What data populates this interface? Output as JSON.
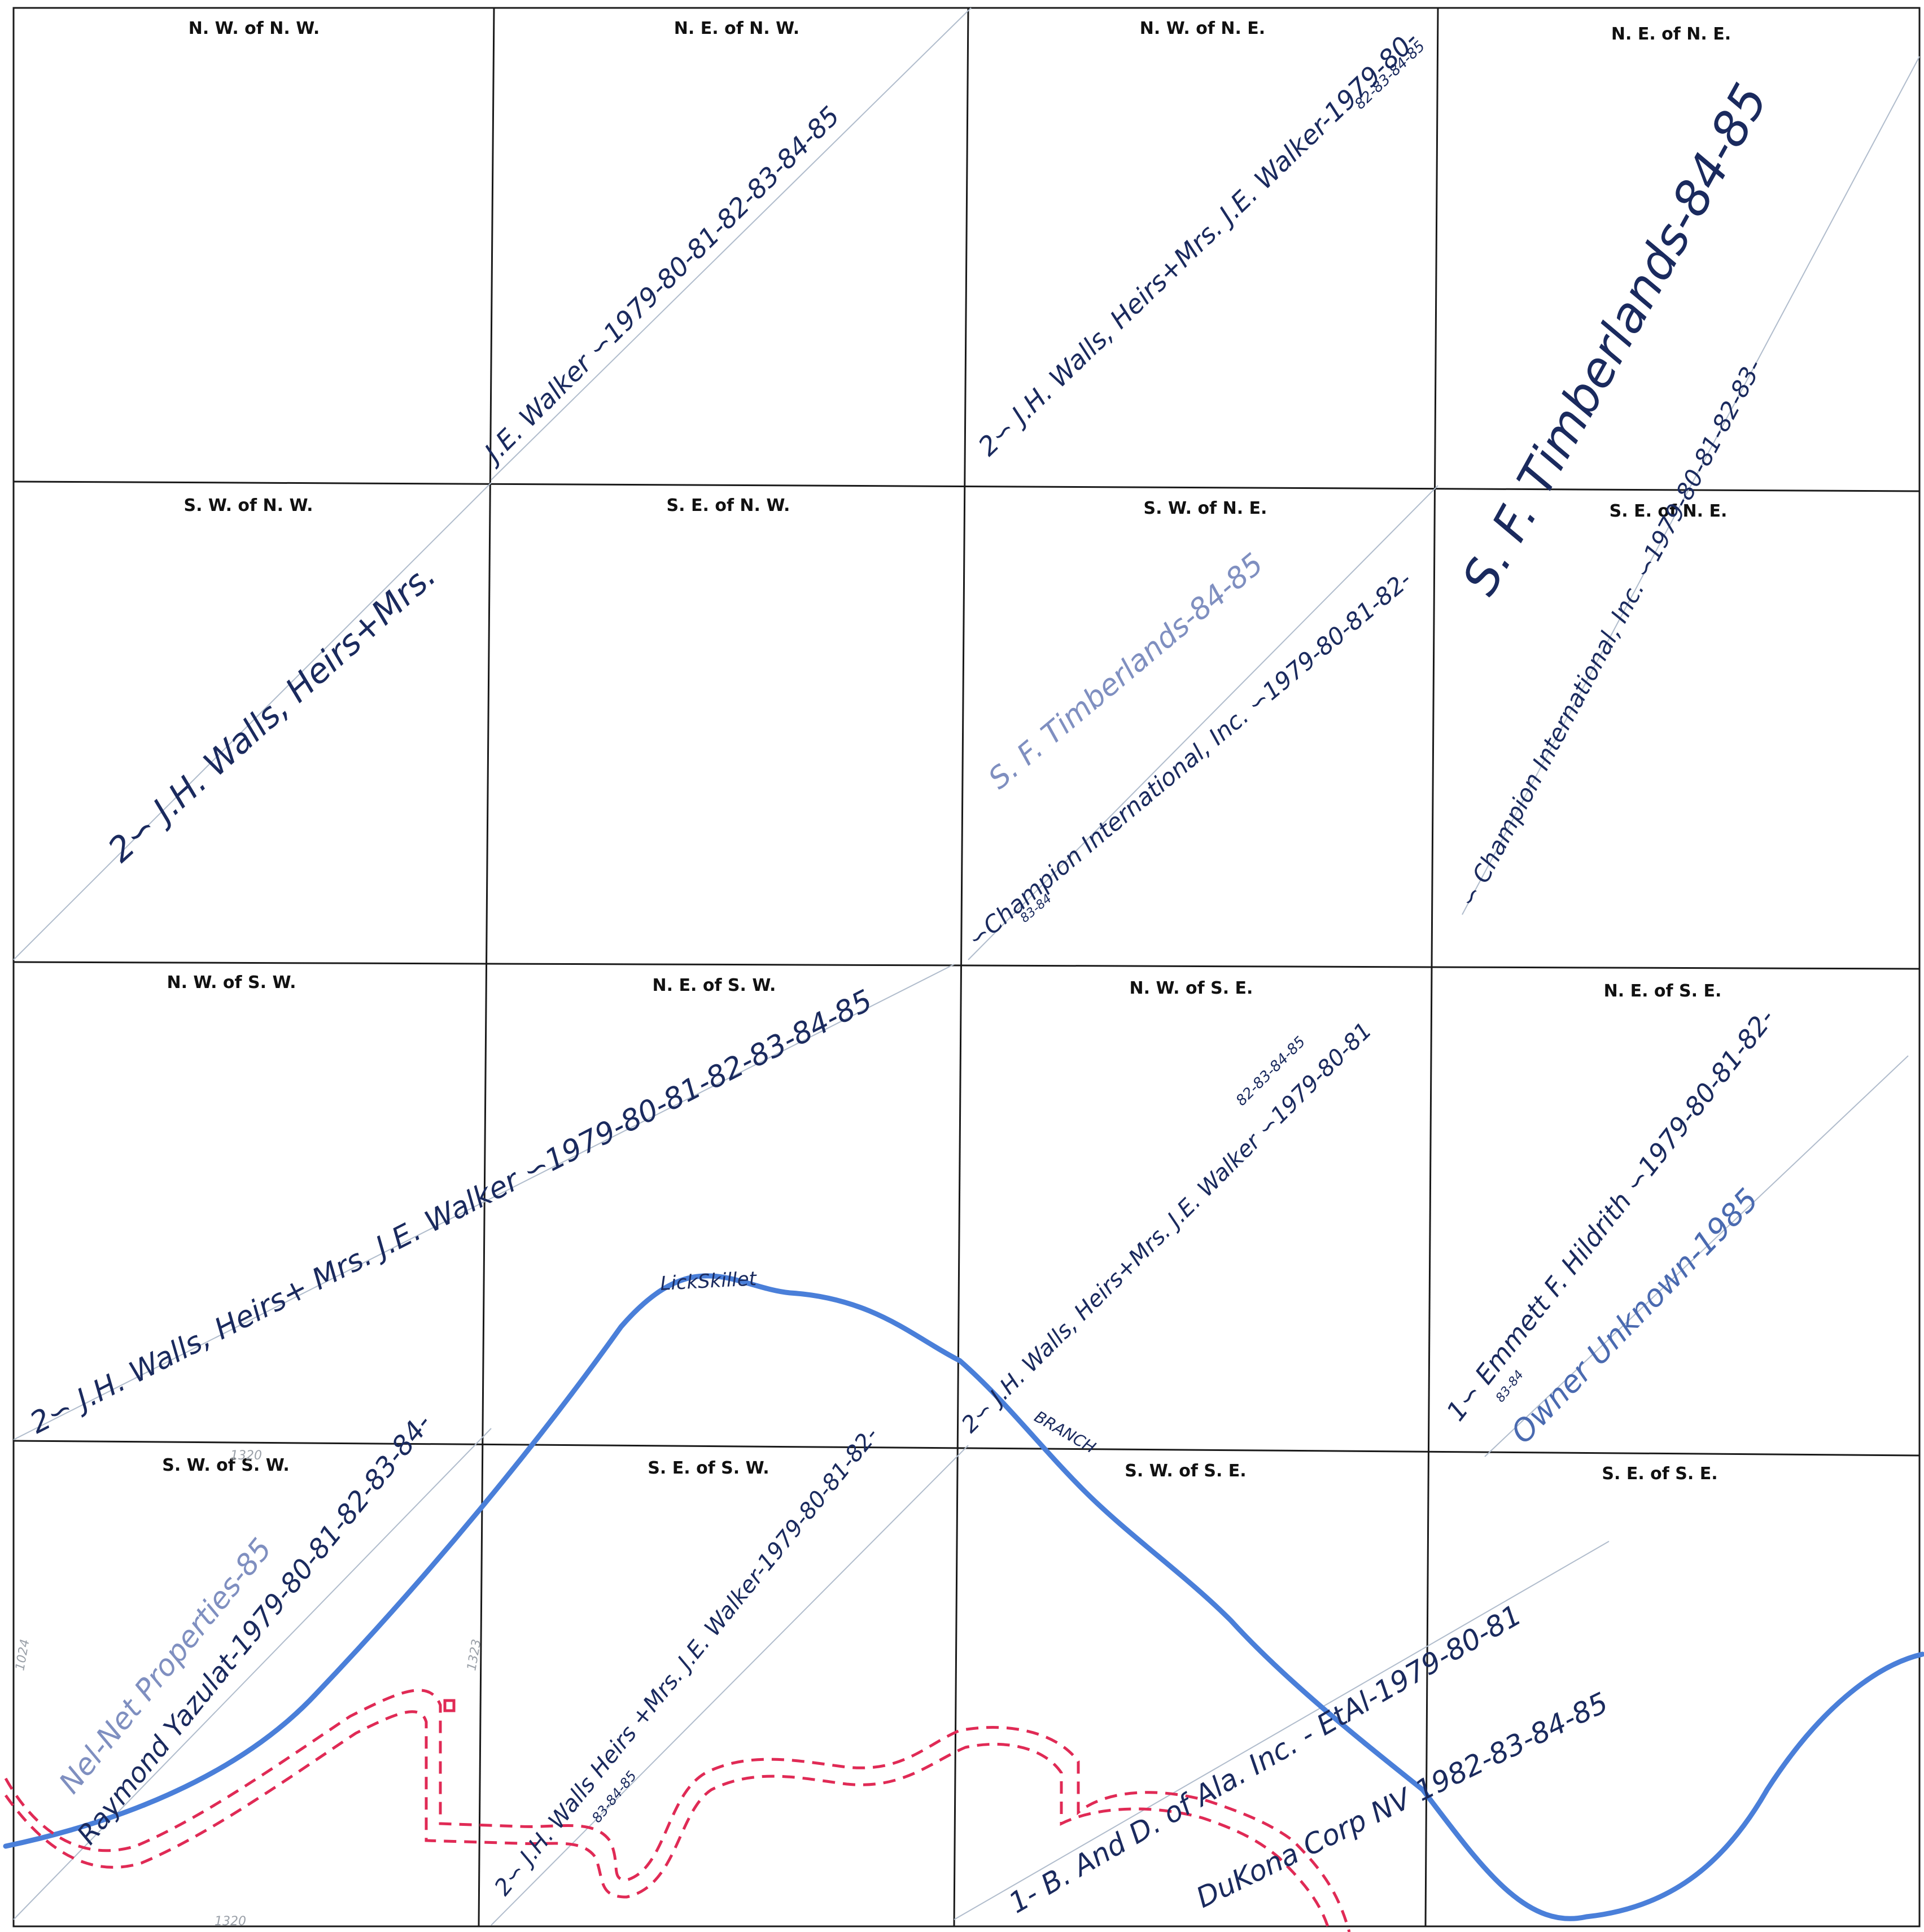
{
  "map": {
    "quarter_labels": [
      {
        "id": "nw-nw",
        "text": "N. W. of N. W."
      },
      {
        "id": "ne-nw",
        "text": "N. E. of N. W."
      },
      {
        "id": "nw-ne",
        "text": "N. W. of N. E."
      },
      {
        "id": "ne-ne",
        "text": "N. E. of N. E."
      },
      {
        "id": "sw-nw",
        "text": "S. W. of N. W."
      },
      {
        "id": "se-nw",
        "text": "S. E. of N. W."
      },
      {
        "id": "sw-ne",
        "text": "S. W. of N. E."
      },
      {
        "id": "se-ne",
        "text": "S. E. of N. E."
      },
      {
        "id": "nw-sw",
        "text": "N. W. of S. W."
      },
      {
        "id": "ne-sw",
        "text": "N. E. of S. W."
      },
      {
        "id": "nw-se",
        "text": "N. W. of S. E."
      },
      {
        "id": "ne-se",
        "text": "N. E. of S. E."
      },
      {
        "id": "sw-sw",
        "text": "S. W. of S. W."
      },
      {
        "id": "se-sw",
        "text": "S. E. of S. W."
      },
      {
        "id": "sw-se",
        "text": "S. W. of S. E."
      },
      {
        "id": "se-se",
        "text": "S. E. of S. E."
      }
    ],
    "owner_annotations": {
      "walker_north": "J.E. Walker ∽1979-80-81-82-83-84-85",
      "walls_north_a": "2∽ J.H. Walls, Heirs+Mrs. J.E. Walker-1979-80-",
      "walls_north_b": "82-83-84-85",
      "walls_west": "2∽ J.H. Walls, Heirs+Mrs.",
      "timberlands_large": "S. F. Timberlands-84-85",
      "champion_ne": "∽ Champion International, Inc. ∽1979-80-81-82-83-",
      "timberlands_small": "S. F. Timberlands-84-85",
      "champion_center": "∽Champion International, Inc. ∽1979-80-81-82-",
      "champion_center_sub": "83-84",
      "walls_south_a": "2∽ J.H. Walls, Heirs+ Mrs. J.E. Walker ∽1979-80-81-82-83-84-85",
      "walls_south_b": "2∽ J.H. Walls, Heirs+Mrs. J.E. Walker ∽1979-80-81",
      "walls_south_b_sub": "82-83-84-85",
      "hildrith": "1∽ Emmett F. Hildrith ∽1979-80-81-82-",
      "hildrith_sub": "83-84",
      "owner_unknown": "Owner Unknown-1985",
      "walls_se_sw": "2∽ J.H. Walls Heirs +Mrs. J.E. Walker-1979-80-81-82-",
      "walls_se_sw_sub": "83-84-85",
      "nel_net": "Nel-Net Properties-85",
      "raymond": "Raymond Yazulat-1979-80-81-82-83-84-",
      "bd_ala": "1- B. And D. of Ala. Inc. - EtAl-1979-80-81",
      "dukona": "DuKona Corp NV 1982-83-84-85"
    },
    "place_labels": {
      "lickskillet": "LickSkillet",
      "branch": "BRANCH"
    },
    "pencil_numbers": {
      "n1320_top": "1320",
      "n1320_bottom": "1320",
      "n1323": "1323",
      "n1024": "1024"
    },
    "colors": {
      "ink": "#1a2a5e",
      "creek": "#4a7fd9",
      "road": "#e02a55",
      "grid": "#1a1a1a"
    }
  }
}
